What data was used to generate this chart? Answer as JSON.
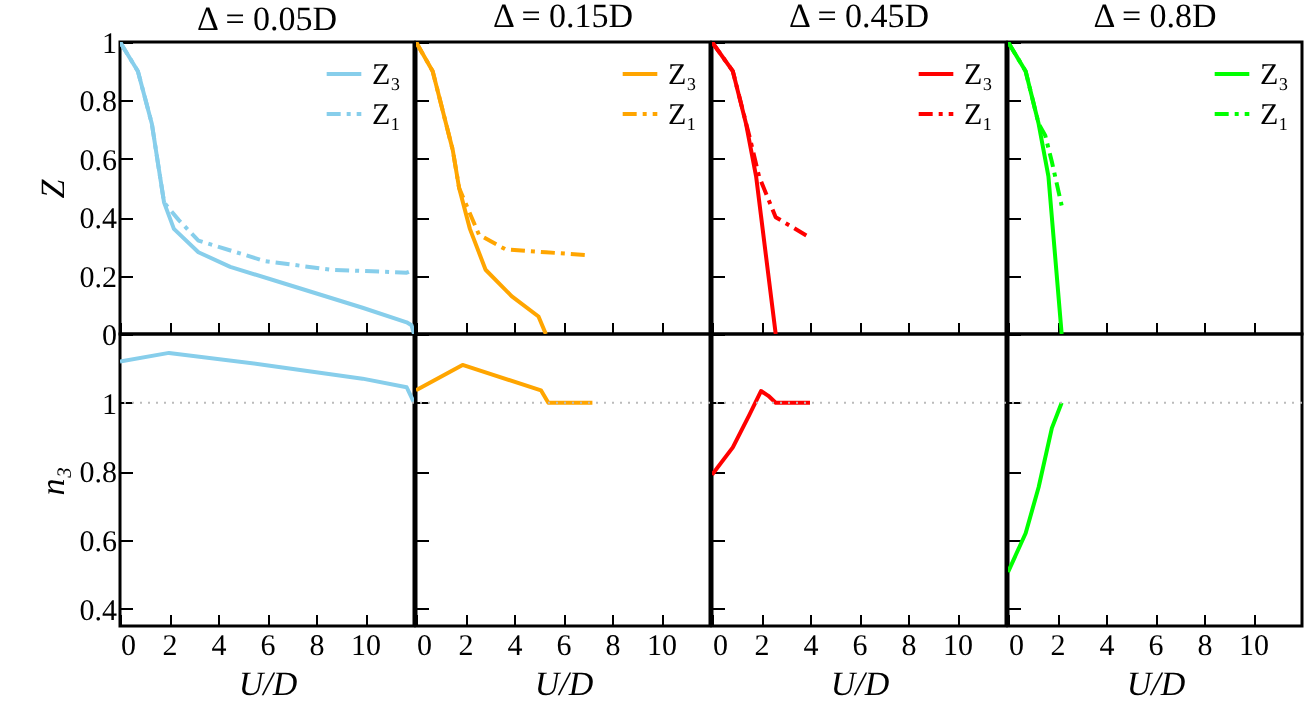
{
  "chart_data": [
    {
      "type": "line",
      "title": "Δ = 0.05D",
      "ylabel": "Z",
      "xlim": [
        0,
        12
      ],
      "xticks": [
        0,
        2,
        4,
        6,
        8,
        10
      ],
      "ylim": [
        0,
        1
      ],
      "yticks": [
        0,
        0.2,
        0.4,
        0.6,
        0.8,
        1
      ],
      "tick_labels": "y",
      "legend": "top right",
      "series": [
        {
          "name": "Z₃",
          "color": "#87ceeb",
          "line_style": "solid",
          "x": [
            0,
            0.73,
            1.3,
            1.54,
            1.8,
            2.2,
            3.2,
            4.5,
            7.2,
            9.9,
            11.7,
            11.9,
            12
          ],
          "values": [
            1,
            0.9,
            0.72,
            0.59,
            0.45,
            0.36,
            0.28,
            0.23,
            0.16,
            0.09,
            0.04,
            0.03,
            0
          ]
        },
        {
          "name": "Z₁",
          "color": "#87ceeb",
          "line_style": "dashed",
          "x": [
            0,
            0.73,
            1.3,
            1.54,
            1.8,
            2.4,
            3.2,
            5.9,
            8.6,
            11.7,
            12
          ],
          "values": [
            1,
            0.9,
            0.72,
            0.59,
            0.45,
            0.39,
            0.32,
            0.25,
            0.22,
            0.21,
            0.22
          ]
        }
      ]
    },
    {
      "type": "line",
      "title": "Δ = 0.15D",
      "xlim": [
        0,
        12
      ],
      "xticks": [
        0,
        2,
        4,
        6,
        8,
        10
      ],
      "ylim": [
        0,
        1
      ],
      "yticks": [
        0,
        0.2,
        0.4,
        0.6,
        0.8,
        1
      ],
      "tick_labels": false,
      "legend": "top right",
      "series": [
        {
          "name": "Z₃",
          "color": "#ffa500",
          "line_style": "solid",
          "x": [
            0,
            0.68,
            1.5,
            1.76,
            2.2,
            2.84,
            3.9,
            5.0,
            5.3
          ],
          "values": [
            1,
            0.9,
            0.63,
            0.5,
            0.36,
            0.22,
            0.13,
            0.06,
            0
          ]
        },
        {
          "name": "Z₁",
          "color": "#ffa500",
          "line_style": "dashed",
          "x": [
            0,
            0.68,
            1.5,
            1.76,
            2.57,
            3.65,
            5.3,
            7.0
          ],
          "values": [
            1,
            0.9,
            0.63,
            0.5,
            0.34,
            0.29,
            0.28,
            0.27
          ]
        }
      ]
    },
    {
      "type": "line",
      "title": "Δ = 0.45D",
      "xlim": [
        0,
        12
      ],
      "xticks": [
        0,
        2,
        4,
        6,
        8,
        10
      ],
      "ylim": [
        0,
        1
      ],
      "yticks": [
        0,
        0.2,
        0.4,
        0.6,
        0.8,
        1
      ],
      "tick_labels": false,
      "legend": "top right",
      "series": [
        {
          "name": "Z₃",
          "color": "#ff0000",
          "line_style": "solid",
          "x": [
            0,
            0.85,
            1.39,
            1.8,
            2.2,
            2.6
          ],
          "values": [
            1,
            0.9,
            0.72,
            0.54,
            0.27,
            0
          ]
        },
        {
          "name": "Z₁",
          "color": "#ff0000",
          "line_style": "dashed",
          "x": [
            0,
            0.85,
            1.52,
            1.92,
            2.6,
            4.0
          ],
          "values": [
            1,
            0.9,
            0.68,
            0.54,
            0.4,
            0.33
          ]
        }
      ]
    },
    {
      "type": "line",
      "title": "Δ = 0.8D",
      "xlim": [
        0,
        12
      ],
      "xticks": [
        0,
        2,
        4,
        6,
        8,
        10
      ],
      "ylim": [
        0,
        1
      ],
      "yticks": [
        0,
        0.2,
        0.4,
        0.6,
        0.8,
        1
      ],
      "tick_labels": false,
      "legend": "top right",
      "series": [
        {
          "name": "Z₃",
          "color": "#00ff00",
          "line_style": "solid",
          "x": [
            0,
            0.72,
            1.25,
            1.65,
            1.92,
            2.19
          ],
          "values": [
            1,
            0.9,
            0.72,
            0.54,
            0.27,
            0
          ]
        },
        {
          "name": "Z₁",
          "color": "#00ff00",
          "line_style": "dashed",
          "x": [
            0,
            0.72,
            1.25,
            1.52,
            1.79,
            2.19
          ],
          "values": [
            1,
            0.9,
            0.72,
            0.68,
            0.59,
            0.44
          ]
        }
      ]
    },
    {
      "type": "line",
      "xlabel": "U/D",
      "ylabel": "n₃",
      "xlim": [
        0,
        12
      ],
      "xticks": [
        0,
        2,
        4,
        6,
        8,
        10
      ],
      "ylim": [
        0.35,
        1.2
      ],
      "yticks": [
        0.4,
        0.6,
        0.8,
        1
      ],
      "ref_lines": [
        {
          "axis": "y",
          "value": 1,
          "color": "#bbbbbb",
          "line_style": "dotted"
        }
      ],
      "series": [
        {
          "color": "#87ceeb",
          "x": [
            0,
            2,
            5.9,
            9.9,
            11.7,
            12
          ],
          "values": [
            1.12,
            1.145,
            1.11,
            1.07,
            1.045,
            1.0
          ]
        }
      ]
    },
    {
      "type": "line",
      "xlabel": "U/D",
      "xlim": [
        0,
        12
      ],
      "xticks": [
        0,
        2,
        4,
        6,
        8,
        10
      ],
      "ylim": [
        0.35,
        1.2
      ],
      "yticks": [
        0.4,
        0.6,
        0.8,
        1
      ],
      "tick_labels": "x",
      "ref_lines": [
        {
          "axis": "y",
          "value": 1,
          "color": "#bbbbbb",
          "line_style": "dotted"
        }
      ],
      "series": [
        {
          "color": "#ffa500",
          "x": [
            0,
            1.9,
            5.1,
            5.4,
            7.2
          ],
          "values": [
            1.036,
            1.11,
            1.036,
            1.0,
            1.0
          ]
        }
      ]
    },
    {
      "type": "line",
      "xlabel": "U/D",
      "xlim": [
        0,
        12
      ],
      "xticks": [
        0,
        2,
        4,
        6,
        8,
        10
      ],
      "ylim": [
        0.35,
        1.2
      ],
      "yticks": [
        0.4,
        0.6,
        0.8,
        1
      ],
      "tick_labels": "x",
      "ref_lines": [
        {
          "axis": "y",
          "value": 1,
          "color": "#bbbbbb",
          "line_style": "dotted"
        }
      ],
      "series": [
        {
          "color": "#ff0000",
          "x": [
            0,
            0.85,
            1.52,
            2.0,
            2.3,
            2.6,
            4.0
          ],
          "values": [
            0.79,
            0.87,
            0.964,
            1.034,
            1.02,
            1.0,
            1.0
          ]
        }
      ]
    },
    {
      "type": "line",
      "xlabel": "U/D",
      "xlim": [
        0,
        12
      ],
      "xticks": [
        0,
        2,
        4,
        6,
        8,
        10
      ],
      "ylim": [
        0.35,
        1.2
      ],
      "yticks": [
        0.4,
        0.6,
        0.8,
        1
      ],
      "tick_labels": "x",
      "ref_lines": [
        {
          "axis": "y",
          "value": 1,
          "color": "#bbbbbb",
          "line_style": "dotted"
        }
      ],
      "series": [
        {
          "color": "#00ff00",
          "x": [
            0,
            0.72,
            1.25,
            1.79,
            2.19
          ],
          "values": [
            0.507,
            0.62,
            0.754,
            0.926,
            1.0
          ]
        }
      ]
    }
  ]
}
